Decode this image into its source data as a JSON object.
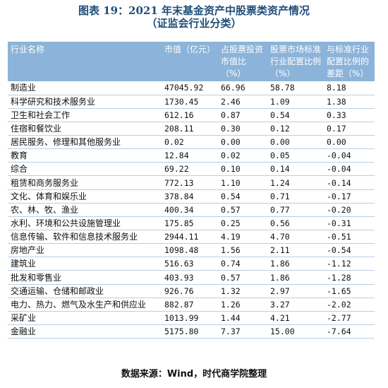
{
  "title": "图表 19：2021 年末基金资产中股票类资产情况",
  "subtitle": "（证监会行业分类）",
  "table": {
    "headers": [
      "行业名称",
      "市值（亿元）",
      "占股票投资市值比（%）",
      "股票市场标准行业配置比例（%）",
      "与标准行业配置比例的差距（%）"
    ],
    "rows": [
      [
        "制造业",
        "47045.92",
        "66.96",
        "58.78",
        "8.18"
      ],
      [
        "科学研究和技术服务业",
        "1730.45",
        "2.46",
        "1.09",
        "1.38"
      ],
      [
        "卫生和社会工作",
        "612.16",
        "0.87",
        "0.54",
        "0.33"
      ],
      [
        "住宿和餐饮业",
        "208.11",
        "0.30",
        "0.12",
        "0.17"
      ],
      [
        "居民服务、修理和其他服务业",
        "0.02",
        "0.00",
        "0.00",
        "0.00"
      ],
      [
        "教育",
        "12.84",
        "0.02",
        "0.05",
        "-0.04"
      ],
      [
        "综合",
        "69.22",
        "0.10",
        "0.14",
        "-0.04"
      ],
      [
        "租赁和商务服务业",
        "772.13",
        "1.10",
        "1.24",
        "-0.14"
      ],
      [
        "文化、体育和娱乐业",
        "378.84",
        "0.54",
        "0.71",
        "-0.17"
      ],
      [
        "农、林、牧、渔业",
        "400.34",
        "0.57",
        "0.77",
        "-0.20"
      ],
      [
        "水利、环境和公共设施管理业",
        "175.85",
        "0.25",
        "0.56",
        "-0.31"
      ],
      [
        "信息传输、软件和信息技术服务业",
        "2944.11",
        "4.19",
        "4.70",
        "-0.51"
      ],
      [
        "房地产业",
        "1098.48",
        "1.56",
        "2.11",
        "-0.54"
      ],
      [
        "建筑业",
        "516.63",
        "0.74",
        "1.86",
        "-1.12"
      ],
      [
        "批发和零售业",
        "403.93",
        "0.57",
        "1.86",
        "-1.28"
      ],
      [
        "交通运输、仓储和邮政业",
        "926.76",
        "1.32",
        "2.97",
        "-1.65"
      ],
      [
        "电力、热力、燃气及水生产和供应业",
        "882.87",
        "1.26",
        "3.27",
        "-2.02"
      ],
      [
        "采矿业",
        "1013.99",
        "1.44",
        "4.21",
        "-2.77"
      ],
      [
        "金融业",
        "5175.80",
        "7.37",
        "15.00",
        "-7.64"
      ]
    ]
  },
  "source": "数据来源：Wind，时代商学院整理",
  "colors": {
    "title": "#1f4e79",
    "header_bg": "#8cb3d9",
    "row_border": "#b9cfe4"
  }
}
